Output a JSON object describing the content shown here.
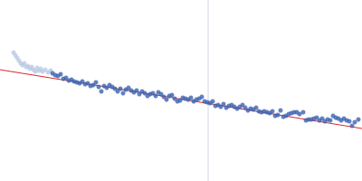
{
  "chart_data": {
    "type": "scatter",
    "xlim": [
      0,
      400
    ],
    "ylim": [
      200,
      0
    ],
    "grid": false,
    "tick_labels": false,
    "series": [
      {
        "type": "line",
        "color": "#cfd6ea",
        "x": [
          230,
          230
        ],
        "values": [
          0,
          200
        ]
      },
      {
        "type": "scatter",
        "color": "#b9c9e3",
        "x": [
          15,
          17,
          19,
          21,
          23,
          25,
          27,
          29,
          31,
          33,
          35,
          37,
          39,
          41,
          43,
          45,
          47,
          50,
          53,
          56
        ],
        "values": [
          58,
          61,
          64,
          67,
          70,
          72,
          70,
          74,
          73,
          76,
          74,
          77,
          79,
          75,
          78,
          76,
          79,
          77,
          80,
          78
        ]
      },
      {
        "type": "line",
        "color": "#d62728",
        "x": [
          0,
          400
        ],
        "values": [
          77,
          142
        ]
      },
      {
        "type": "scatter",
        "color": "#3a62b0",
        "x": [
          58,
          61,
          64,
          67,
          70,
          73,
          76,
          79,
          82,
          85,
          88,
          91,
          94,
          97,
          100,
          103,
          106,
          109,
          112,
          115,
          118,
          121,
          124,
          127,
          130,
          133,
          136,
          139,
          142,
          145,
          148,
          151,
          154,
          157,
          160,
          163,
          166,
          169,
          172,
          175,
          178,
          181,
          184,
          187,
          190,
          193,
          196,
          199,
          202,
          205,
          208,
          211,
          214,
          217,
          220,
          223,
          226,
          229,
          232,
          235,
          238,
          241,
          244,
          247,
          250,
          253,
          256,
          259,
          262,
          265,
          268,
          271,
          274,
          277,
          280,
          283,
          286,
          289,
          292,
          295,
          298,
          301,
          304,
          307,
          310,
          313,
          316,
          319,
          322,
          325,
          328,
          331,
          335,
          338,
          341,
          344,
          347,
          350,
          353,
          356,
          359,
          362,
          365,
          368,
          371,
          374,
          377,
          380,
          383,
          386,
          389,
          392,
          396
        ],
        "values": [
          81,
          83,
          84,
          82,
          87,
          86,
          89,
          88,
          90,
          91,
          92,
          90,
          93,
          92,
          95,
          94,
          91,
          96,
          101,
          95,
          97,
          94,
          96,
          98,
          101,
          98,
          103,
          99,
          97,
          100,
          102,
          100,
          104,
          101,
          103,
          106,
          104,
          103,
          106,
          102,
          104,
          107,
          110,
          106,
          105,
          109,
          112,
          111,
          108,
          109,
          110,
          108,
          112,
          110,
          109,
          107,
          112,
          113,
          114,
          112,
          117,
          116,
          118,
          115,
          119,
          117,
          116,
          118,
          120,
          118,
          116,
          119,
          122,
          120,
          121,
          119,
          123,
          124,
          123,
          124,
          125,
          123,
          128,
          127,
          122,
          129,
          128,
          126,
          125,
          124,
          124,
          126,
          124,
          133,
          132,
          132,
          131,
          130,
          133,
          131,
          134,
          132,
          133,
          128,
          130,
          131,
          133,
          131,
          133,
          134,
          139,
          135,
          132
        ]
      }
    ]
  }
}
